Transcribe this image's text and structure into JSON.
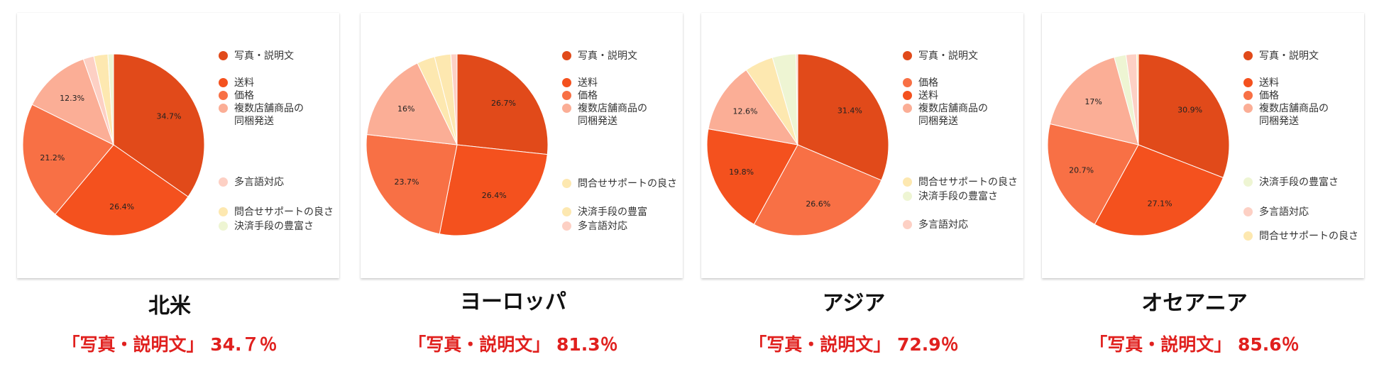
{
  "colors": {
    "写真・説明文": "#e14a1a",
    "送料": "#f4511e",
    "価格": "#f87045",
    "複数店舗商品の\n同梱発送": "#fbae96",
    "多言語対応": "#fdd0c4",
    "問合せサポートの良さ": "#fde8b0",
    "決済手段の豊富さ": "#eef5d3",
    "決済手段の豊富": "#fde8b0"
  },
  "panels": [
    {
      "title": "北米",
      "note": "「写真・説明文」 34.７％",
      "chart_data": {
        "type": "pie",
        "categories": [
          "写真・説明文",
          "送料",
          "価格",
          "複数店舗商品の\n同梱発送",
          "多言語対応",
          "問合せサポートの良さ",
          "決済手段の豊富さ"
        ],
        "values": [
          34.7,
          26.4,
          21.2,
          12.3,
          1.9,
          2.5,
          1.0
        ],
        "data_labels": [
          "34.7%",
          "26.4%",
          "21.2%",
          "12.3%",
          "",
          "",
          ""
        ],
        "legend_position": "right"
      }
    },
    {
      "title": "ヨーロッパ",
      "note": "「写真・説明文」 81.3％",
      "chart_data": {
        "type": "pie",
        "categories": [
          "写真・説明文",
          "送料",
          "価格",
          "複数店舗商品の\n同梱発送",
          "問合せサポートの良さ",
          "決済手段の豊富",
          "多言語対応"
        ],
        "values": [
          26.7,
          26.4,
          23.7,
          16.0,
          3.2,
          2.9,
          1.1
        ],
        "data_labels": [
          "26.7%",
          "26.4%",
          "23.7%",
          "16%",
          "",
          "",
          ""
        ],
        "legend_position": "right"
      }
    },
    {
      "title": "アジア",
      "note": "「写真・説明文」 72.9％",
      "chart_data": {
        "type": "pie",
        "categories": [
          "写真・説明文",
          "価格",
          "送料",
          "複数店舗商品の\n同梱発送",
          "問合せサポートの良さ",
          "決済手段の豊富さ",
          "多言語対応"
        ],
        "values": [
          31.4,
          26.6,
          19.8,
          12.6,
          5.1,
          4.2,
          0.3
        ],
        "data_labels": [
          "31.4%",
          "26.6%",
          "19.8%",
          "12.6%",
          "",
          "",
          ""
        ],
        "legend_position": "right"
      }
    },
    {
      "title": "オセアニア",
      "note": "「写真・説明文」 85.6％",
      "chart_data": {
        "type": "pie",
        "categories": [
          "写真・説明文",
          "送料",
          "価格",
          "複数店舗商品の\n同梱発送",
          "決済手段の豊富さ",
          "多言語対応",
          "問合せサポートの良さ"
        ],
        "values": [
          30.9,
          27.1,
          20.7,
          17.0,
          2.1,
          1.9,
          0.3
        ],
        "data_labels": [
          "30.9%",
          "27.1%",
          "20.7%",
          "17%",
          "",
          "",
          ""
        ],
        "legend_position": "right"
      }
    }
  ]
}
